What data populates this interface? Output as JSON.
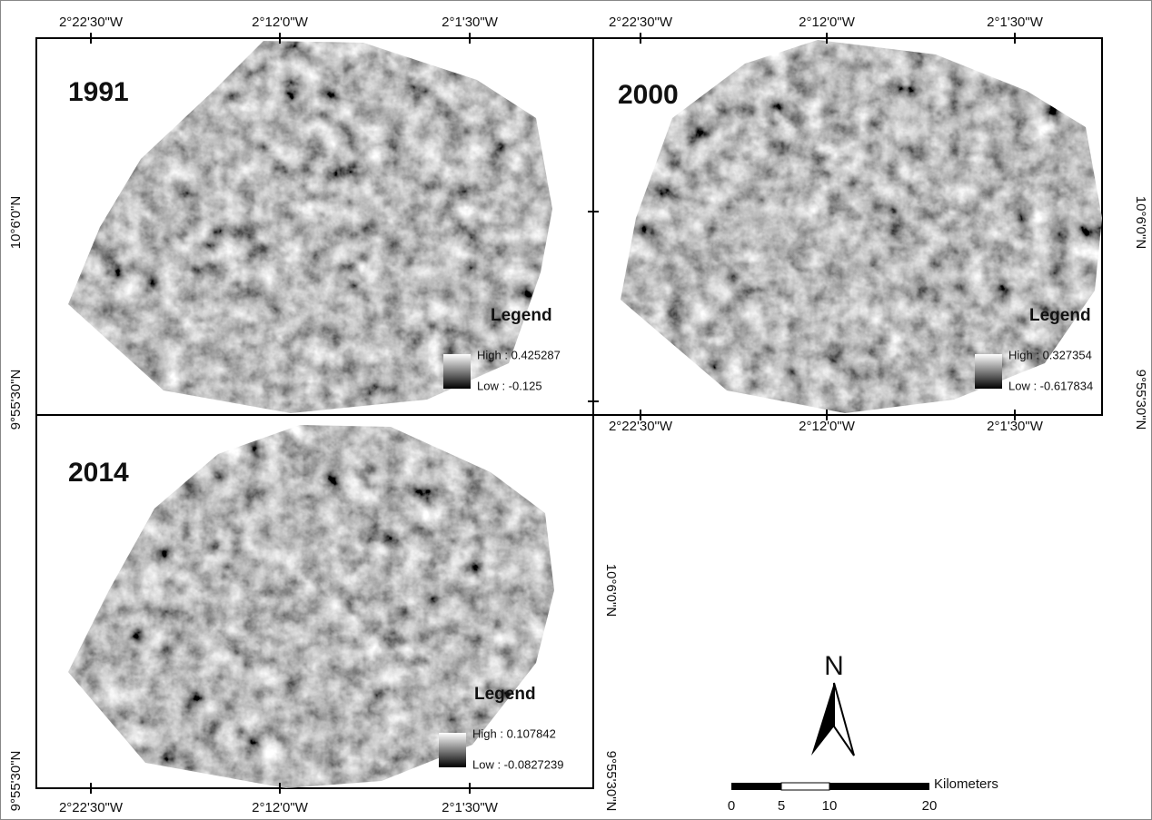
{
  "panels": [
    {
      "year": "1991",
      "top_labels": [
        "2°22'30\"W",
        "2°12'0\"W",
        "2°1'30\"W"
      ],
      "left_labels": [
        "10°6'0\"N",
        "9°55'30\"N"
      ],
      "legend": {
        "title": "Legend",
        "high": "High : 0.425287",
        "low": "Low : -0.125"
      }
    },
    {
      "year": "2000",
      "top_labels": [
        "2°22'30\"W",
        "2°12'0\"W",
        "2°1'30\"W"
      ],
      "bottom_labels": [
        "2°22'30\"W",
        "2°12'0\"W",
        "2°1'30\"W"
      ],
      "right_labels": [
        "10°6'0\"N",
        "9°55'30\"N"
      ],
      "legend": {
        "title": "Legend",
        "high": "High : 0.327354",
        "low": "Low : -0.617834"
      }
    },
    {
      "year": "2014",
      "bottom_labels": [
        "2°22'30\"W",
        "2°12'0\"W",
        "2°1'30\"W"
      ],
      "left_labels": [
        "9°55'30\"N"
      ],
      "right_labels": [
        "10°6'0\"N",
        "9°55'30\"N"
      ],
      "legend": {
        "title": "Legend",
        "high": "High : 0.107842",
        "low": "Low : -0.0827239"
      }
    }
  ],
  "north_arrow": "N",
  "scale_bar": {
    "ticks": [
      0,
      5,
      10,
      20
    ],
    "unit": "Kilometers"
  }
}
